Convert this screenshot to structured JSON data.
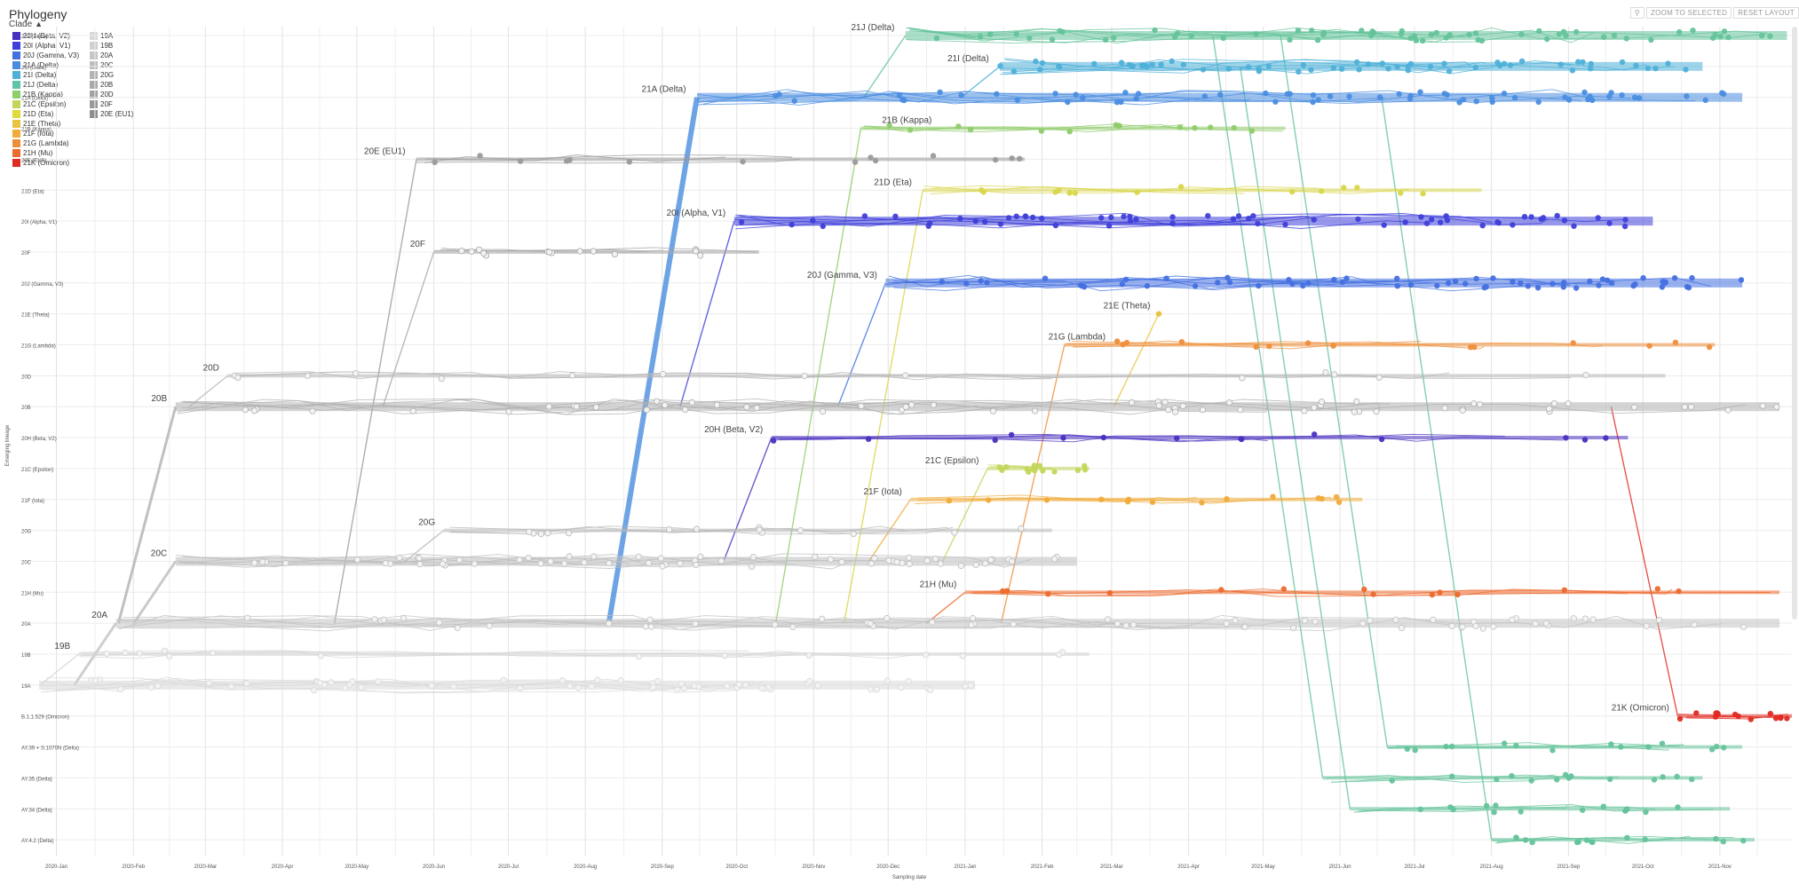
{
  "panel_title": "Phylogeny",
  "legend_label": "Clade",
  "toolbar": {
    "zoom_label": "ZOOM TO SELECTED",
    "reset_label": "RESET LAYOUT"
  },
  "legend": [
    {
      "label": "20H (Beta, V2)",
      "color": "#4a2fbf"
    },
    {
      "label": "20I (Alpha, V1)",
      "color": "#3f3fd9"
    },
    {
      "label": "20J (Gamma, V3)",
      "color": "#4470e0"
    },
    {
      "label": "21A (Delta)",
      "color": "#4a8de0"
    },
    {
      "label": "21I (Delta)",
      "color": "#4fb0d8"
    },
    {
      "label": "21J (Delta)",
      "color": "#5cc4a8"
    },
    {
      "label": "21B (Kappa)",
      "color": "#8fcc6a"
    },
    {
      "label": "21C (Epsilon)",
      "color": "#c3d65a"
    },
    {
      "label": "21D (Eta)",
      "color": "#dedc3a"
    },
    {
      "label": "21E (Theta)",
      "color": "#e8c440"
    },
    {
      "label": "21F (Iota)",
      "color": "#f0ab3a"
    },
    {
      "label": "21G (Lambda)",
      "color": "#ef8e3a"
    },
    {
      "label": "21H (Mu)",
      "color": "#ec6a2e"
    },
    {
      "label": "21K (Omicron)",
      "color": "#e02a22"
    },
    {
      "label": "19A",
      "color": "#d9d9d9"
    },
    {
      "label": "19B",
      "color": "#d0d0d0"
    },
    {
      "label": "20A",
      "color": "#c6c6c6"
    },
    {
      "label": "20C",
      "color": "#bcbcbc"
    },
    {
      "label": "20G",
      "color": "#b3b3b3"
    },
    {
      "label": "20B",
      "color": "#aaaaaa"
    },
    {
      "label": "20D",
      "color": "#a2a2a2"
    },
    {
      "label": "20F",
      "color": "#999999"
    },
    {
      "label": "20E (EU1)",
      "color": "#8e8e8e"
    }
  ],
  "chart_data": {
    "type": "line",
    "xlabel": "Sampling date",
    "ylabel": "Emerging lineage",
    "x_ticks": [
      "2020-Jan",
      "2020-Feb",
      "2020-Mar",
      "2020-Apr",
      "2020-May",
      "2020-Jun",
      "2020-Jul",
      "2020-Aug",
      "2020-Sep",
      "2020-Oct",
      "2020-Nov",
      "2020-Dec",
      "2021-Jan",
      "2021-Feb",
      "2021-Mar",
      "2021-Apr",
      "2021-May",
      "2021-Jun",
      "2021-Jul",
      "2021-Aug",
      "2021-Sep",
      "2021-Oct",
      "2021-Nov"
    ],
    "xlim": [
      "2019-12-20",
      "2021-11-30"
    ],
    "rows": [
      {
        "label": "21J (Delta)",
        "color": "#64c39a",
        "start": "2020-12-08",
        "end": "2021-11-28",
        "origin_row": "21A (Delta)"
      },
      {
        "label": "21I (Delta)",
        "color": "#4fb0d8",
        "start": "2021-01-15",
        "end": "2021-10-25",
        "origin_row": "21A (Delta)"
      },
      {
        "label": "21A (Delta)",
        "color": "#4a8de0",
        "start": "2020-09-15",
        "end": "2021-11-10",
        "origin_row": "20A"
      },
      {
        "label": "21B (Kappa)",
        "color": "#8fcc6a",
        "start": "2020-11-20",
        "end": "2021-05-10",
        "origin_row": "20A"
      },
      {
        "label": "20E (EU1)",
        "color": "#9a9a9a",
        "start": "2020-05-25",
        "end": "2021-01-25",
        "origin_row": "20A"
      },
      {
        "label": "21D (Eta)",
        "color": "#d8d64a",
        "start": "2020-12-15",
        "end": "2021-07-28",
        "origin_row": "20A"
      },
      {
        "label": "20I (Alpha, V1)",
        "color": "#3f3fd9",
        "start": "2020-09-30",
        "end": "2021-10-05",
        "origin_row": "20B"
      },
      {
        "label": "20F",
        "color": "#a8a8a8",
        "start": "2020-06-01",
        "end": "2020-10-10",
        "origin_row": "20B"
      },
      {
        "label": "20J (Gamma, V3)",
        "color": "#4470e0",
        "start": "2020-11-30",
        "end": "2021-11-10",
        "origin_row": "20B"
      },
      {
        "label": "21E (Theta)",
        "color": "#e8c440",
        "start": "2021-03-20",
        "end": "2021-03-20",
        "origin_row": "20B"
      },
      {
        "label": "21G (Lambda)",
        "color": "#ef8e3a",
        "start": "2021-02-10",
        "end": "2021-10-30",
        "origin_row": "20A"
      },
      {
        "label": "20D",
        "color": "#b8b8b8",
        "start": "2020-03-10",
        "end": "2021-10-10",
        "origin_row": "20B"
      },
      {
        "label": "20B",
        "color": "#b0b0b0",
        "start": "2020-02-18",
        "end": "2021-11-25",
        "origin_row": "20A"
      },
      {
        "label": "20H (Beta, V2)",
        "color": "#4a2fbf",
        "start": "2020-10-15",
        "end": "2021-09-25",
        "origin_row": "20C"
      },
      {
        "label": "21C (Epsilon)",
        "color": "#c3d65a",
        "start": "2021-01-10",
        "end": "2021-02-20",
        "origin_row": "20C"
      },
      {
        "label": "21F (Iota)",
        "color": "#f0ab3a",
        "start": "2020-12-10",
        "end": "2021-06-10",
        "origin_row": "20C"
      },
      {
        "label": "20G",
        "color": "#b8b8b8",
        "start": "2020-06-05",
        "end": "2021-02-05",
        "origin_row": "20C"
      },
      {
        "label": "20C",
        "color": "#bdbdbd",
        "start": "2020-02-18",
        "end": "2021-02-15",
        "origin_row": "20A"
      },
      {
        "label": "21H (Mu)",
        "color": "#ec6a2e",
        "start": "2021-01-01",
        "end": "2021-11-25",
        "origin_row": "20A"
      },
      {
        "label": "20A",
        "color": "#c2c2c2",
        "start": "2020-01-25",
        "end": "2021-11-25",
        "origin_row": "19A"
      },
      {
        "label": "19B",
        "color": "#d4d4d4",
        "start": "2020-01-10",
        "end": "2021-02-20",
        "origin_row": "19A"
      },
      {
        "label": "19A",
        "color": "#d9d9d9",
        "start": "2019-12-25",
        "end": "2021-01-05",
        "origin_row": null
      },
      {
        "label": "B.1.1.529 (Omicron)",
        "color": "#e02a22",
        "start": "2021-10-15",
        "end": "2021-11-30",
        "origin_row": "20B"
      },
      {
        "label": "AY.39 + S:1070N (Delta)",
        "color": "#64c39a",
        "start": "2021-06-20",
        "end": "2021-11-10",
        "origin_row": "21J (Delta)"
      },
      {
        "label": "AY.35 (Delta)",
        "color": "#64c39a",
        "start": "2021-05-25",
        "end": "2021-10-25",
        "origin_row": "21J (Delta)"
      },
      {
        "label": "AY.34 (Delta)",
        "color": "#64c39a",
        "start": "2021-06-05",
        "end": "2021-11-05",
        "origin_row": "21I (Delta)"
      },
      {
        "label": "AY.4.2 (Delta)",
        "color": "#64c39a",
        "start": "2021-08-01",
        "end": "2021-11-15",
        "origin_row": "21A (Delta)"
      }
    ],
    "clade_labels": [
      {
        "label": "21J (Delta)",
        "row": "21J (Delta)",
        "x": "2020-12-05"
      },
      {
        "label": "21I (Delta)",
        "row": "21I (Delta)",
        "x": "2021-01-12"
      },
      {
        "label": "21A (Delta)",
        "row": "21A (Delta)",
        "x": "2020-09-12"
      },
      {
        "label": "21B (Kappa)",
        "row": "21B (Kappa)",
        "x": "2020-12-20"
      },
      {
        "label": "20E (EU1)",
        "row": "20E (EU1)",
        "x": "2020-05-22"
      },
      {
        "label": "21D (Eta)",
        "row": "21D (Eta)",
        "x": "2020-12-12"
      },
      {
        "label": "20I (Alpha, V1)",
        "row": "20I (Alpha, V1)",
        "x": "2020-09-28"
      },
      {
        "label": "20F",
        "row": "20F",
        "x": "2020-05-30"
      },
      {
        "label": "20J (Gamma, V3)",
        "row": "20J (Gamma, V3)",
        "x": "2020-11-28"
      },
      {
        "label": "21E (Theta)",
        "row": "21E (Theta)",
        "x": "2021-03-18"
      },
      {
        "label": "21G (Lambda)",
        "row": "21G (Lambda)",
        "x": "2021-02-28"
      },
      {
        "label": "20D",
        "row": "20D",
        "x": "2020-03-08"
      },
      {
        "label": "20B",
        "row": "20B",
        "x": "2020-02-16"
      },
      {
        "label": "20H (Beta, V2)",
        "row": "20H (Beta, V2)",
        "x": "2020-10-13"
      },
      {
        "label": "21C (Epsilon)",
        "row": "21C (Epsilon)",
        "x": "2021-01-08"
      },
      {
        "label": "21F (Iota)",
        "row": "21F (Iota)",
        "x": "2020-12-08"
      },
      {
        "label": "20G",
        "row": "20G",
        "x": "2020-06-03"
      },
      {
        "label": "20C",
        "row": "20C",
        "x": "2020-02-16"
      },
      {
        "label": "21H (Mu)",
        "row": "21H (Mu)",
        "x": "2020-12-30"
      },
      {
        "label": "20A",
        "row": "20A",
        "x": "2020-01-23"
      },
      {
        "label": "19B",
        "row": "19B",
        "x": "2020-01-08"
      },
      {
        "label": "21K (Omicron)",
        "row": "B.1.1.529 (Omicron)",
        "x": "2021-10-13"
      }
    ],
    "grid": true,
    "legend_position": "top-left"
  }
}
